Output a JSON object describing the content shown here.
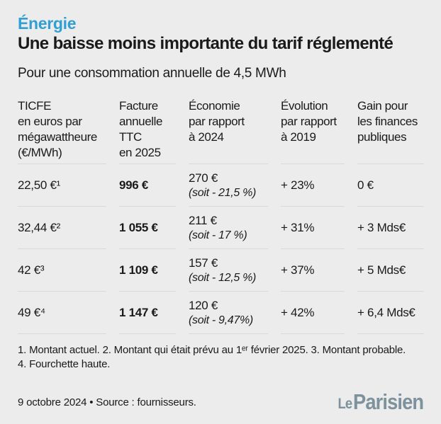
{
  "theme": {
    "background": "#ececec",
    "accent_blue": "#2f9fd6",
    "text_color": "#1a1a1a",
    "divider_color": "#d9d9d9",
    "logo_color": "#7d929d"
  },
  "header": {
    "kicker": "Énergie",
    "title": "Une baisse moins importante du tarif réglementé",
    "subtitle": "Pour une consommation annuelle de 4,5 MWh"
  },
  "table": {
    "headers": [
      "TICFE\nen euros par\nmégawattheure\n(€/MWh)",
      "Facture\nannuelle\nTTC\nen 2025",
      "Économie\npar rapport\nà 2024",
      "Évolution\npar rapport\nà 2019",
      "Gain pour\nles finances\npubliques"
    ],
    "rows": [
      {
        "ticfe": "22,50 €¹",
        "facture": "996 €",
        "economie_montant": "270 €",
        "economie_pct": "(soit - 21,5 %)",
        "evolution": "+ 23%",
        "gain": "0 €"
      },
      {
        "ticfe": "32,44 €²",
        "facture": "1 055 €",
        "economie_montant": "211 €",
        "economie_pct": "(soit - 17 %)",
        "evolution": "+ 31%",
        "gain": "+ 3 Mds€"
      },
      {
        "ticfe": "42 €³",
        "facture": "1 109 €",
        "economie_montant": "157 €",
        "economie_pct": "(soit - 12,5 %)",
        "evolution": "+ 37%",
        "gain": "+ 5 Mds€"
      },
      {
        "ticfe": "49 €⁴",
        "facture": "1 147 €",
        "economie_montant": "120 €",
        "economie_pct": "(soit - 9,47%)",
        "evolution": "+ 42%",
        "gain": "+ 6,4 Mds€"
      }
    ]
  },
  "footnotes": {
    "line1": "1. Montant actuel. 2. Montant qui était prévu au 1ᵉʳ février 2025. 3. Montant probable.",
    "line2": "4. Fourchette haute."
  },
  "footer": {
    "date_source": "9 octobre 2024 • Source : fournisseurs.",
    "logo_le": "Le",
    "logo_parisien": "Parisien"
  },
  "chart_data": {
    "type": "table",
    "title": "Une baisse moins importante du tarif réglementé",
    "subtitle": "Pour une consommation annuelle de 4,5 MWh",
    "kicker": "Énergie",
    "columns": [
      "TICFE en euros par mégawattheure (€/MWh)",
      "Facture annuelle TTC en 2025",
      "Économie par rapport à 2024",
      "Évolution par rapport à 2019",
      "Gain pour les finances publiques"
    ],
    "rows": [
      [
        "22,50 €¹",
        "996 €",
        "270 € (soit - 21,5 %)",
        "+ 23%",
        "0 €"
      ],
      [
        "32,44 €²",
        "1 055 €",
        "211 € (soit - 17 %)",
        "+ 31%",
        "+ 3 Mds€"
      ],
      [
        "42 €³",
        "1 109 €",
        "157 € (soit - 12,5 %)",
        "+ 37%",
        "+ 5 Mds€"
      ],
      [
        "49 €⁴",
        "1 147 €",
        "120 € (soit - 9,47%)",
        "+ 42%",
        "+ 6,4 Mds€"
      ]
    ],
    "notes": "1. Montant actuel. 2. Montant qui était prévu au 1er février 2025. 3. Montant probable. 4. Fourchette haute.",
    "source": "fournisseurs",
    "date": "9 octobre 2024"
  }
}
